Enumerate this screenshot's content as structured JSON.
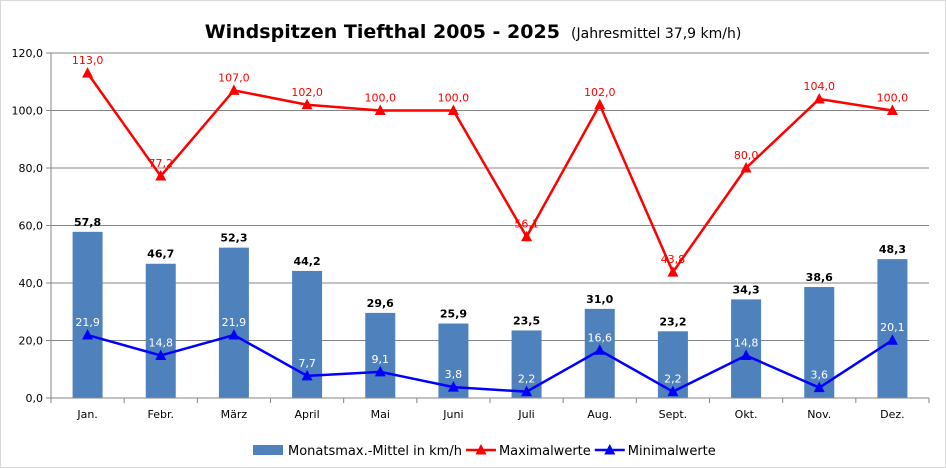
{
  "chart_data": {
    "type": "bar",
    "title": "Windspitzen  Tiefthal 2005 - 2025",
    "subtitle": "(Jahresmittel 37,9 km/h)",
    "categories": [
      "Jan.",
      "Febr.",
      "März",
      "April",
      "Mai",
      "Juni",
      "Juli",
      "Aug.",
      "Sept.",
      "Okt.",
      "Nov.",
      "Dez."
    ],
    "ylim": [
      0,
      120
    ],
    "yticks": [
      "0,0",
      "20,0",
      "40,0",
      "60,0",
      "80,0",
      "100,0",
      "120,0"
    ],
    "grid": true,
    "legend_position": "bottom",
    "series": [
      {
        "name": "Monatsmax.-Mittel in km/h",
        "type": "bar",
        "color": "#4f81bd",
        "label_color": "#000000",
        "values": [
          57.8,
          46.7,
          52.3,
          44.2,
          29.6,
          25.9,
          23.5,
          31.0,
          23.2,
          34.3,
          38.6,
          48.3
        ],
        "labels": [
          "57,8",
          "46,7",
          "52,3",
          "44,2",
          "29,6",
          "25,9",
          "23,5",
          "31,0",
          "23,2",
          "34,3",
          "38,6",
          "48,3"
        ]
      },
      {
        "name": "Maximalwerte",
        "type": "line",
        "color": "#ff0000",
        "label_color": "#ff0000",
        "values": [
          113.0,
          77.2,
          107.0,
          102.0,
          100.0,
          100.0,
          56.1,
          102.0,
          43.8,
          80.0,
          104.0,
          100.0
        ],
        "labels": [
          "113,0",
          "77,2",
          "107,0",
          "102,0",
          "100,0",
          "100,0",
          "56,1",
          "102,0",
          "43,8",
          "80,0",
          "104,0",
          "100,0"
        ]
      },
      {
        "name": "Minimalwerte",
        "type": "line",
        "color": "#0000ff",
        "label_color": "#ffffff",
        "values": [
          21.9,
          14.8,
          21.9,
          7.7,
          9.1,
          3.8,
          2.2,
          16.6,
          2.2,
          14.8,
          3.6,
          20.1
        ],
        "labels": [
          "21,9",
          "14,8",
          "21,9",
          "7,7",
          "9,1",
          "3,8",
          "2,2",
          "16,6",
          "2,2",
          "14,8",
          "3,6",
          "20,1"
        ]
      }
    ]
  }
}
